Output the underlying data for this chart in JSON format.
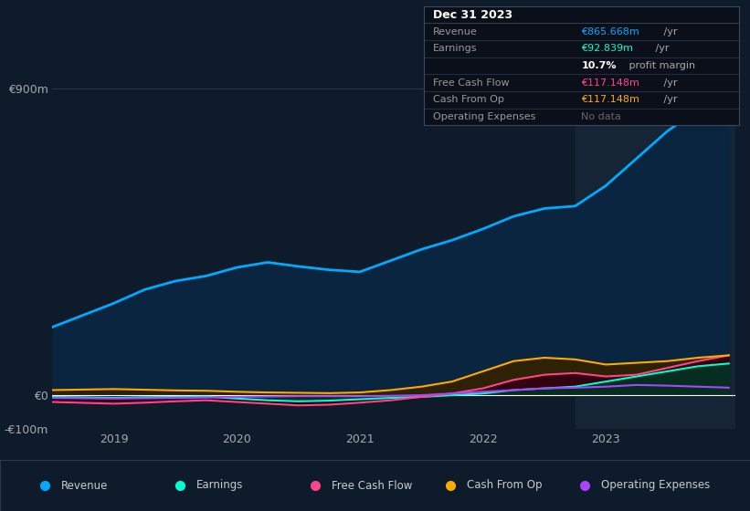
{
  "bg_color": "#0d1b2a",
  "plot_bg_color": "#0d1b2a",
  "highlight_bg": "#1a2a3a",
  "grid_color": "#2a3a4a",
  "zero_line_color": "#ffffff",
  "ylim": [
    -100,
    950
  ],
  "xlim": [
    2018.5,
    2024.05
  ],
  "x_highlight_start": 2022.75,
  "x_highlight_end": 2024.05,
  "revenue_color": "#00aaff",
  "revenue_fill": "#0a2540",
  "earnings_color": "#00ffcc",
  "earnings_fill": "#003322",
  "fcf_color": "#ff4488",
  "fcf_fill": "#330011",
  "cashop_color": "#ffaa00",
  "cashop_fill": "#332200",
  "opex_color": "#aa44ff",
  "opex_fill": "#1a0033",
  "legend_bg": "#0d1b2a",
  "legend_border": "#3a4a5a",
  "info_box_bg": "#0a0f1a",
  "info_box_border": "#3a4a5a",
  "revenue_data": [
    [
      2018.5,
      200
    ],
    [
      2019.0,
      270
    ],
    [
      2019.25,
      310
    ],
    [
      2019.5,
      335
    ],
    [
      2019.75,
      350
    ],
    [
      2020.0,
      375
    ],
    [
      2020.25,
      390
    ],
    [
      2020.5,
      378
    ],
    [
      2020.75,
      368
    ],
    [
      2021.0,
      362
    ],
    [
      2021.25,
      395
    ],
    [
      2021.5,
      428
    ],
    [
      2021.75,
      455
    ],
    [
      2022.0,
      488
    ],
    [
      2022.25,
      525
    ],
    [
      2022.5,
      548
    ],
    [
      2022.75,
      555
    ],
    [
      2023.0,
      615
    ],
    [
      2023.25,
      695
    ],
    [
      2023.5,
      775
    ],
    [
      2023.75,
      838
    ],
    [
      2024.0,
      866
    ]
  ],
  "earnings_data": [
    [
      2018.5,
      -5
    ],
    [
      2019.0,
      -8
    ],
    [
      2019.25,
      -6
    ],
    [
      2019.5,
      -5
    ],
    [
      2019.75,
      -4
    ],
    [
      2020.0,
      -10
    ],
    [
      2020.25,
      -15
    ],
    [
      2020.5,
      -18
    ],
    [
      2020.75,
      -16
    ],
    [
      2021.0,
      -12
    ],
    [
      2021.25,
      -8
    ],
    [
      2021.5,
      -5
    ],
    [
      2021.75,
      0
    ],
    [
      2022.0,
      5
    ],
    [
      2022.25,
      15
    ],
    [
      2022.5,
      20
    ],
    [
      2022.75,
      25
    ],
    [
      2023.0,
      40
    ],
    [
      2023.25,
      55
    ],
    [
      2023.5,
      70
    ],
    [
      2023.75,
      85
    ],
    [
      2024.0,
      93
    ]
  ],
  "fcf_data": [
    [
      2018.5,
      -20
    ],
    [
      2019.0,
      -25
    ],
    [
      2019.25,
      -22
    ],
    [
      2019.5,
      -18
    ],
    [
      2019.75,
      -15
    ],
    [
      2020.0,
      -20
    ],
    [
      2020.25,
      -25
    ],
    [
      2020.5,
      -30
    ],
    [
      2020.75,
      -28
    ],
    [
      2021.0,
      -22
    ],
    [
      2021.25,
      -15
    ],
    [
      2021.5,
      -5
    ],
    [
      2021.75,
      5
    ],
    [
      2022.0,
      20
    ],
    [
      2022.25,
      45
    ],
    [
      2022.5,
      60
    ],
    [
      2022.75,
      65
    ],
    [
      2023.0,
      55
    ],
    [
      2023.25,
      60
    ],
    [
      2023.5,
      80
    ],
    [
      2023.75,
      100
    ],
    [
      2024.0,
      117
    ]
  ],
  "cashop_data": [
    [
      2018.5,
      15
    ],
    [
      2019.0,
      18
    ],
    [
      2019.25,
      16
    ],
    [
      2019.5,
      14
    ],
    [
      2019.75,
      13
    ],
    [
      2020.0,
      10
    ],
    [
      2020.25,
      8
    ],
    [
      2020.5,
      7
    ],
    [
      2020.75,
      6
    ],
    [
      2021.0,
      8
    ],
    [
      2021.25,
      15
    ],
    [
      2021.5,
      25
    ],
    [
      2021.75,
      40
    ],
    [
      2022.0,
      70
    ],
    [
      2022.25,
      100
    ],
    [
      2022.5,
      110
    ],
    [
      2022.75,
      105
    ],
    [
      2023.0,
      90
    ],
    [
      2023.25,
      95
    ],
    [
      2023.5,
      100
    ],
    [
      2023.75,
      110
    ],
    [
      2024.0,
      117
    ]
  ],
  "opex_data": [
    [
      2018.5,
      -8
    ],
    [
      2019.0,
      -10
    ],
    [
      2019.25,
      -9
    ],
    [
      2019.5,
      -8
    ],
    [
      2019.75,
      -7
    ],
    [
      2020.0,
      -5
    ],
    [
      2020.25,
      -4
    ],
    [
      2020.5,
      -3
    ],
    [
      2020.75,
      -3
    ],
    [
      2021.0,
      -3
    ],
    [
      2021.25,
      -2
    ],
    [
      2021.5,
      0
    ],
    [
      2021.75,
      5
    ],
    [
      2022.0,
      10
    ],
    [
      2022.25,
      15
    ],
    [
      2022.5,
      20
    ],
    [
      2022.75,
      22
    ],
    [
      2023.0,
      25
    ],
    [
      2023.25,
      30
    ],
    [
      2023.5,
      28
    ],
    [
      2023.75,
      25
    ],
    [
      2024.0,
      22
    ]
  ],
  "info_box": {
    "title": "Dec 31 2023",
    "rows": [
      {
        "label": "Revenue",
        "value": "€865.668m",
        "suffix": " /yr",
        "value_color": "#00aaff"
      },
      {
        "label": "Earnings",
        "value": "€92.839m",
        "suffix": " /yr",
        "value_color": "#00ffcc"
      },
      {
        "label": "",
        "value": "10.7%",
        "suffix": " profit margin",
        "value_color": "#ffffff",
        "bold_value": true
      },
      {
        "label": "Free Cash Flow",
        "value": "€117.148m",
        "suffix": " /yr",
        "value_color": "#ff4488"
      },
      {
        "label": "Cash From Op",
        "value": "€117.148m",
        "suffix": " /yr",
        "value_color": "#ffaa00"
      },
      {
        "label": "Operating Expenses",
        "value": "No data",
        "suffix": "",
        "value_color": "#666666"
      }
    ]
  },
  "legend_items": [
    {
      "label": "Revenue",
      "color": "#00aaff"
    },
    {
      "label": "Earnings",
      "color": "#00ffcc"
    },
    {
      "label": "Free Cash Flow",
      "color": "#ff4488"
    },
    {
      "label": "Cash From Op",
      "color": "#ffaa00"
    },
    {
      "label": "Operating Expenses",
      "color": "#aa44ff"
    }
  ]
}
